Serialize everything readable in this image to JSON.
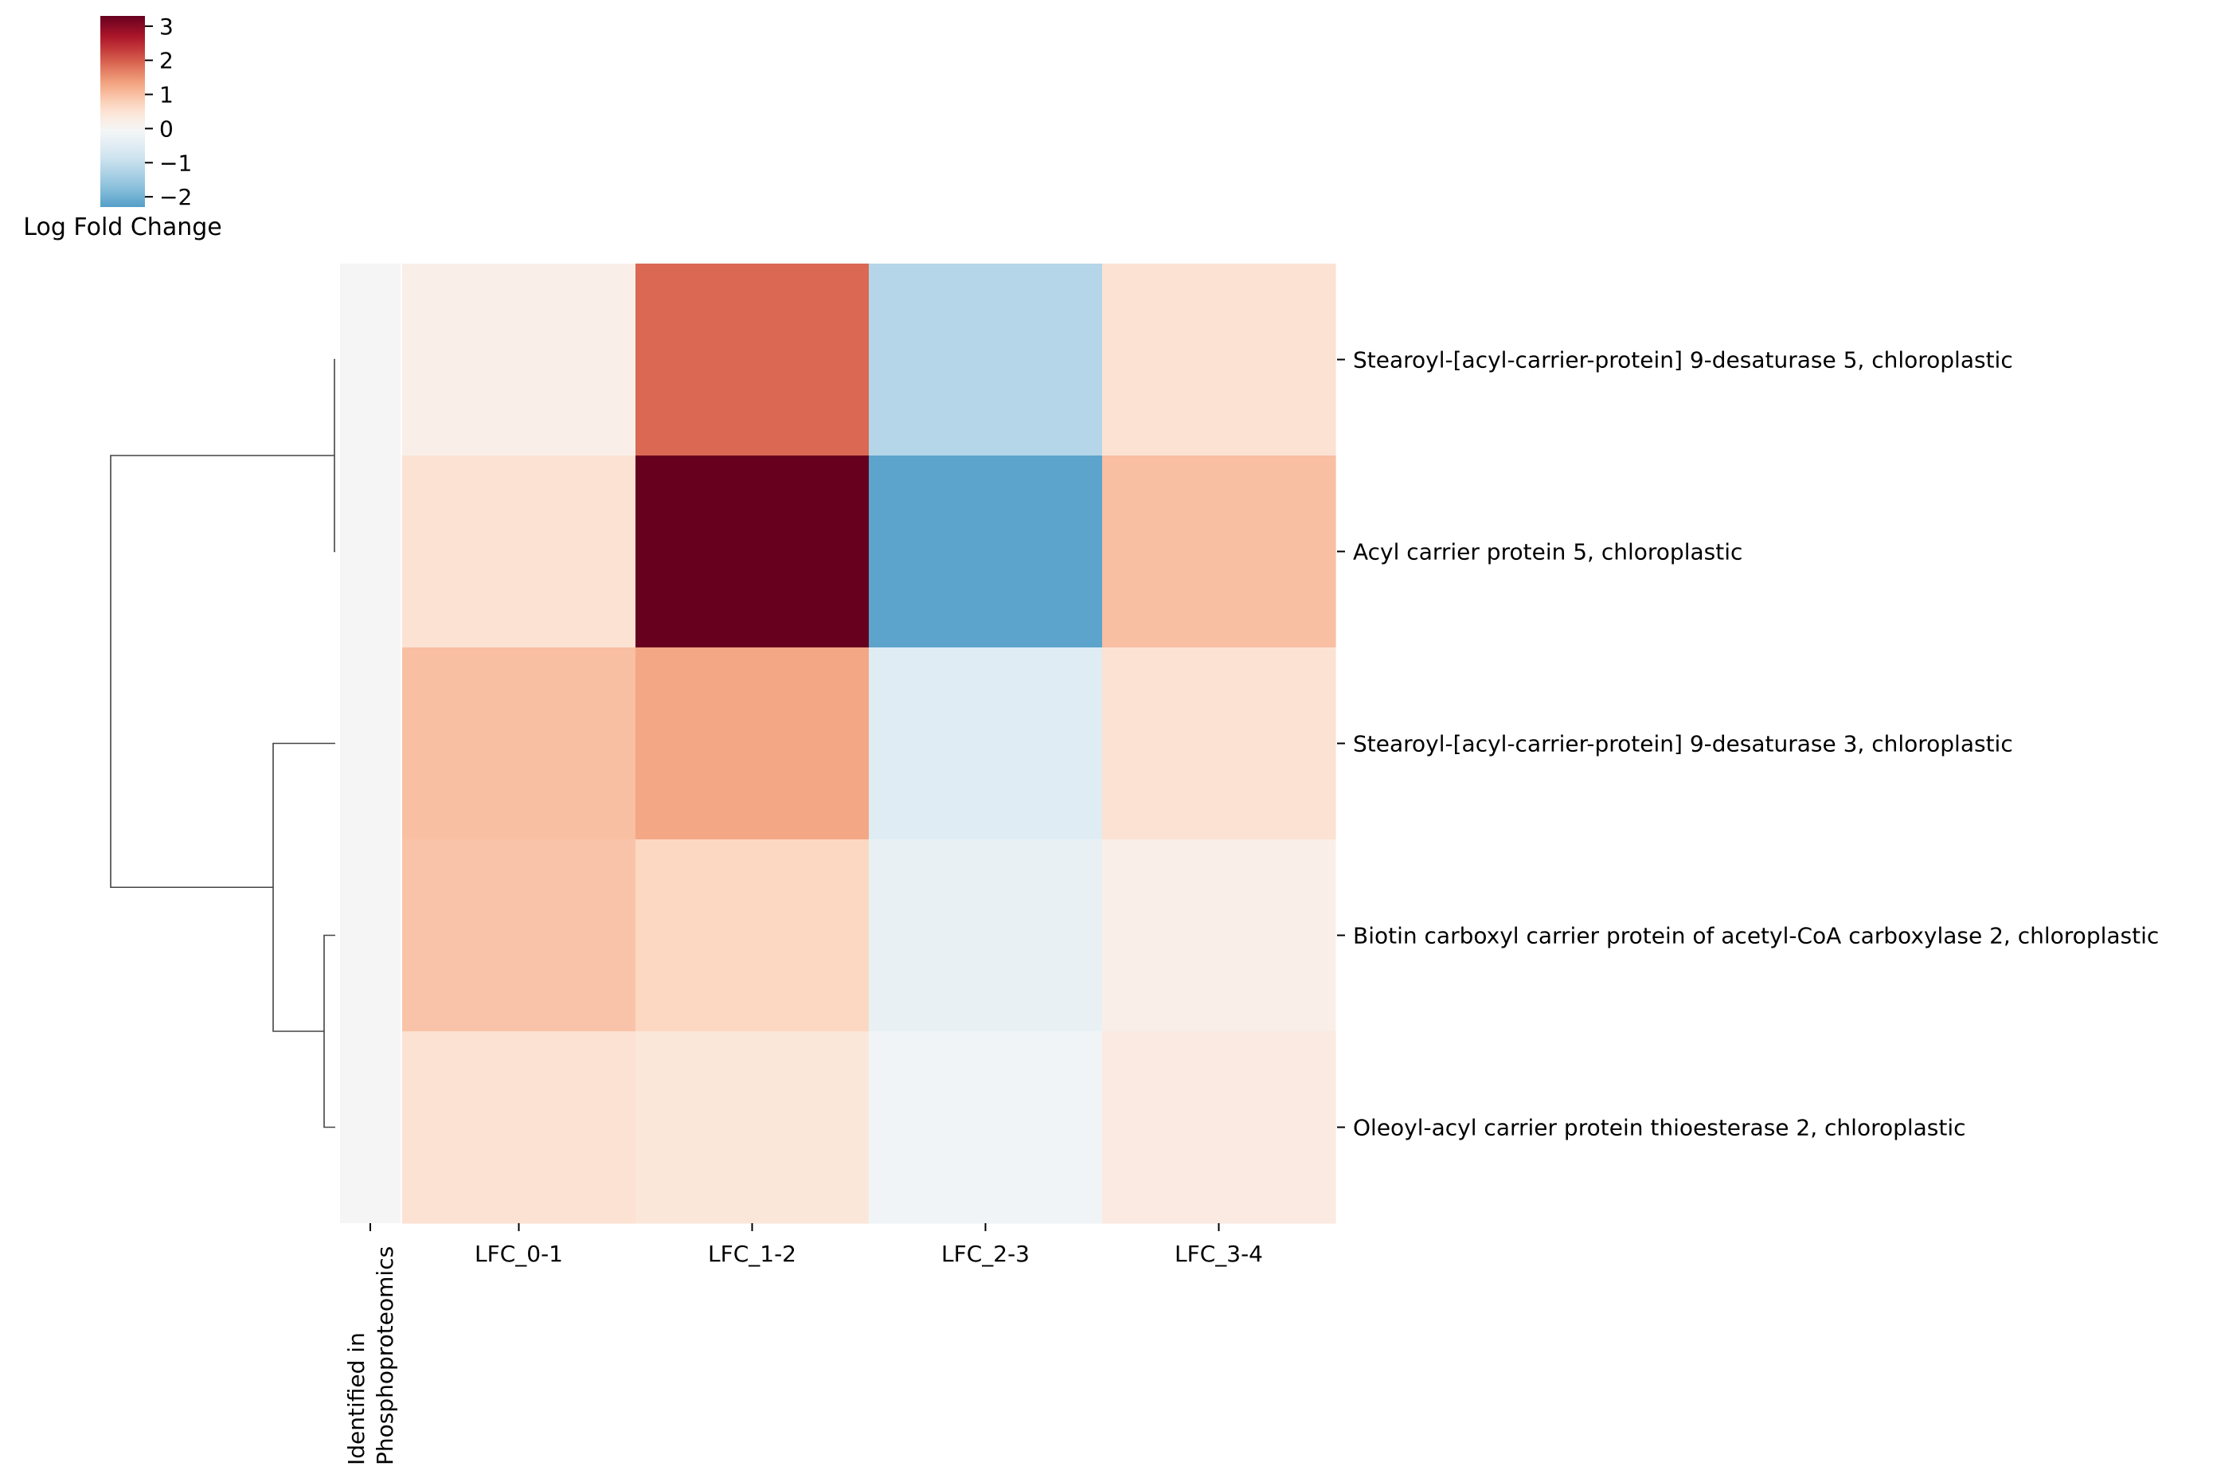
{
  "chart_data": {
    "type": "heatmap",
    "title": "",
    "xlabel": "",
    "ylabel": "",
    "colorbar": {
      "label": "Log Fold Change",
      "range": [
        -2.3,
        3.3
      ],
      "ticks": [
        3,
        2,
        1,
        0,
        -1,
        -2
      ],
      "tick_labels": [
        "3",
        "2",
        "1",
        "0",
        "−1",
        "−2"
      ],
      "colormap": "RdBu_r"
    },
    "columns": [
      "LFC_0-1",
      "LFC_1-2",
      "LFC_2-3",
      "LFC_3-4"
    ],
    "annotation_column": {
      "label_line1": "Identified in",
      "label_line2": "Phosphoproteomics",
      "color": "#f5f5f5"
    },
    "rows": [
      "Stearoyl-[acyl-carrier-protein] 9-desaturase 5, chloroplastic",
      "Acyl carrier protein 5, chloroplastic",
      "Stearoyl-[acyl-carrier-protein] 9-desaturase 3, chloroplastic",
      "Biotin carboxyl carrier protein of acetyl-CoA carboxylase 2, chloroplastic",
      "Oleoyl-acyl carrier protein thioesterase 2, chloroplastic"
    ],
    "values": [
      [
        0.2,
        1.9,
        -1.2,
        0.5
      ],
      [
        0.5,
        3.3,
        -2.2,
        1.0
      ],
      [
        1.0,
        1.3,
        -0.5,
        0.5
      ],
      [
        0.95,
        0.7,
        -0.3,
        0.2
      ],
      [
        0.5,
        0.4,
        -0.15,
        0.3
      ]
    ],
    "dendrogram": {
      "side": "left",
      "linkage": [
        {
          "a": 0,
          "b": 1
        },
        {
          "a": 3,
          "b": 4
        },
        {
          "a": 2,
          "c": 1
        },
        {
          "c": 0,
          "c2": 2
        }
      ]
    }
  }
}
